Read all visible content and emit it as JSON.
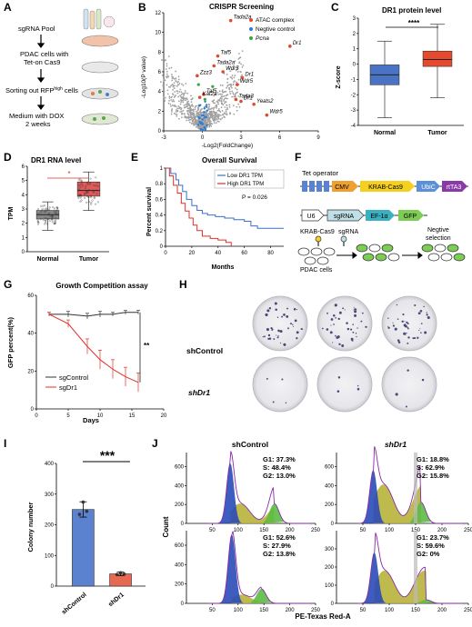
{
  "panels": {
    "A": {
      "label": "A",
      "steps": [
        "sgRNA Pool",
        "PDAC cells with",
        "Tet-on Cas9",
        "Sorting out RFP",
        "high",
        " cells",
        "Medium with DOX",
        "2 weeks"
      ]
    },
    "B": {
      "label": "B",
      "title": "CRISPR Screening",
      "xlabel": "-Log2(FoldChange)",
      "ylabel": "-Log10(P value)",
      "legend": [
        "ATAC complex",
        "Negtive control",
        "Pcna"
      ],
      "colors": {
        "atac": "#e04a2e",
        "neg": "#2a7bd6",
        "pcna": "#39a83a",
        "other": "#9a9a9a"
      },
      "genes": [
        "Tada2a",
        "Dr1",
        "Taf5",
        "Tada2a",
        "Wdr5",
        "Zzz3",
        "Dr1",
        "Wdr5",
        "Taf5",
        "Tada3",
        "Dr1",
        "Yeats2",
        "Wdr5",
        "Kat2a"
      ]
    },
    "C": {
      "label": "C",
      "title": "DR1 protein level",
      "ylabel": "Z-score",
      "categories": [
        "Normal",
        "Tumor"
      ],
      "sig": "****"
    },
    "D": {
      "label": "D",
      "title": "DR1 RNA level",
      "ylabel": "TPM",
      "categories": [
        "Normal",
        "Tumor"
      ],
      "sig": "*"
    },
    "E": {
      "label": "E",
      "title": "Overall Survival",
      "ylabel": "Percent survival",
      "xlabel": "Months",
      "legend": [
        "Low DR1 TPM",
        "High DR1 TPM"
      ],
      "pvalue": "P = 0.026"
    },
    "F": {
      "label": "F",
      "construct1": [
        "Tet operator",
        "CMV",
        "KRAB-Cas9",
        "UbiC",
        "rtTA3"
      ],
      "construct2": [
        "U6",
        "sgRNA",
        "EF-1α",
        "GFP"
      ],
      "flow": [
        "KRAB-Cas9",
        "sgRNA",
        "Negtive",
        "selection",
        "PDAC cells"
      ]
    },
    "G": {
      "label": "G",
      "title": "Growth Competition assay",
      "ylabel": "GFP percent(%)",
      "xlabel": "Days",
      "legend": [
        "sgControl",
        "sgDr1"
      ],
      "sig": "**"
    },
    "H": {
      "label": "H",
      "rows": [
        "shControl",
        "shDr1"
      ]
    },
    "I": {
      "label": "I",
      "ylabel": "Colony number",
      "categories": [
        "shControl",
        "shDr1"
      ],
      "sig": "***"
    },
    "J": {
      "label": "J",
      "col_titles": [
        "shControl",
        "shDr1"
      ],
      "ylabel": "Count",
      "xlabel": "PE-Texas Red-A",
      "stats": [
        [
          "G1: 37.3%",
          "S: 48.4%",
          "G2: 13.0%"
        ],
        [
          "G1: 18.8%",
          "S: 62.9%",
          "G2: 15.8%"
        ],
        [
          "G1: 52.6%",
          "S: 27.9%",
          "G2: 13.8%"
        ],
        [
          "G1: 23.7%",
          "S: 59.6%",
          "G2: 0%"
        ]
      ]
    }
  },
  "chart_data": [
    {
      "type": "scatter",
      "panel": "B",
      "title": "CRISPR Screening",
      "xlabel": "-Log2(FoldChange)",
      "ylabel": "-Log10(P value)",
      "xlim": [
        -3,
        9
      ],
      "ylim": [
        0,
        12
      ],
      "xticks": [
        -3,
        0,
        3,
        6,
        9
      ],
      "yticks": [
        0,
        2,
        4,
        6,
        8,
        10,
        12
      ]
    },
    {
      "type": "box",
      "panel": "C",
      "title": "DR1 protein level",
      "ylabel": "Z-score",
      "ylim": [
        -4,
        3
      ],
      "yticks": [
        -4,
        -3,
        -2,
        -1,
        0,
        1,
        2,
        3
      ],
      "categories": [
        "Normal",
        "Tumor"
      ],
      "boxes": [
        {
          "min": -3.5,
          "q1": -1.35,
          "median": -0.7,
          "q3": -0.05,
          "max": 1.5,
          "color": "#4a73c5"
        },
        {
          "min": -2.2,
          "q1": -0.15,
          "median": 0.3,
          "q3": 0.85,
          "max": 2.6,
          "color": "#e64a2e"
        }
      ]
    },
    {
      "type": "box",
      "panel": "D",
      "title": "DR1 RNA level",
      "ylabel": "TPM",
      "ylim": [
        0,
        6
      ],
      "yticks": [
        0,
        1,
        2,
        3,
        4,
        5,
        6
      ],
      "categories": [
        "Normal",
        "Tumor"
      ],
      "boxes": [
        {
          "min": 1.5,
          "q1": 2.3,
          "median": 2.6,
          "q3": 2.9,
          "max": 3.5,
          "color": "#888888"
        },
        {
          "min": 2.9,
          "q1": 3.9,
          "median": 4.3,
          "q3": 4.9,
          "max": 5.6,
          "color": "#e05a5a"
        }
      ]
    },
    {
      "type": "line",
      "panel": "E",
      "title": "Overall Survival",
      "xlabel": "Months",
      "ylabel": "Percent survival",
      "xlim": [
        0,
        90
      ],
      "ylim": [
        0,
        1
      ],
      "xticks": [
        0,
        20,
        40,
        60,
        80
      ],
      "yticks": [
        0,
        0.2,
        0.4,
        0.6,
        0.8,
        1.0
      ],
      "series": [
        {
          "name": "Low DR1 TPM",
          "color": "#3c6fc6",
          "x": [
            0,
            4,
            8,
            10,
            13,
            16,
            20,
            24,
            28,
            32,
            38,
            45,
            52,
            60,
            65,
            70,
            90
          ],
          "y": [
            1,
            0.93,
            0.85,
            0.78,
            0.7,
            0.6,
            0.52,
            0.46,
            0.42,
            0.4,
            0.38,
            0.36,
            0.34,
            0.32,
            0.26,
            0.23,
            0.23
          ]
        },
        {
          "name": "High DR1 TPM",
          "color": "#e0302a",
          "x": [
            0,
            3,
            6,
            9,
            12,
            15,
            18,
            21,
            24,
            28,
            34,
            40,
            46,
            50
          ],
          "y": [
            1,
            0.9,
            0.78,
            0.68,
            0.55,
            0.45,
            0.36,
            0.27,
            0.2,
            0.13,
            0.1,
            0.08,
            0.05,
            0
          ]
        }
      ]
    },
    {
      "type": "line",
      "panel": "G",
      "title": "Growth Competition assay",
      "xlabel": "Days",
      "ylabel": "GFP percent(%)",
      "xlim": [
        0,
        20
      ],
      "ylim": [
        0,
        60
      ],
      "xticks": [
        0,
        5,
        10,
        15,
        20
      ],
      "yticks": [
        0,
        20,
        40,
        60
      ],
      "series": [
        {
          "name": "sgControl",
          "color": "#333333",
          "x": [
            2,
            5,
            8,
            10,
            12,
            14,
            16
          ],
          "y": [
            50,
            50,
            49,
            50,
            50,
            51,
            51
          ],
          "err": [
            1,
            1.5,
            1.5,
            1.5,
            1,
            1,
            1
          ]
        },
        {
          "name": "sgDr1",
          "color": "#e0302a",
          "x": [
            2,
            5,
            8,
            10,
            12,
            14,
            16
          ],
          "y": [
            50,
            45,
            33,
            26,
            21,
            17,
            14
          ],
          "err": [
            1,
            2,
            4,
            5,
            5,
            5,
            5
          ]
        }
      ]
    },
    {
      "type": "bar",
      "panel": "I",
      "ylabel": "Colony number",
      "categories": [
        "shControl",
        "shDr1"
      ],
      "values": [
        250,
        40
      ],
      "errors": [
        25,
        6
      ],
      "ylim": [
        0,
        400
      ],
      "yticks": [
        0,
        100,
        200,
        300,
        400
      ],
      "colors": [
        "#5b82cf",
        "#e66a52"
      ]
    }
  ]
}
